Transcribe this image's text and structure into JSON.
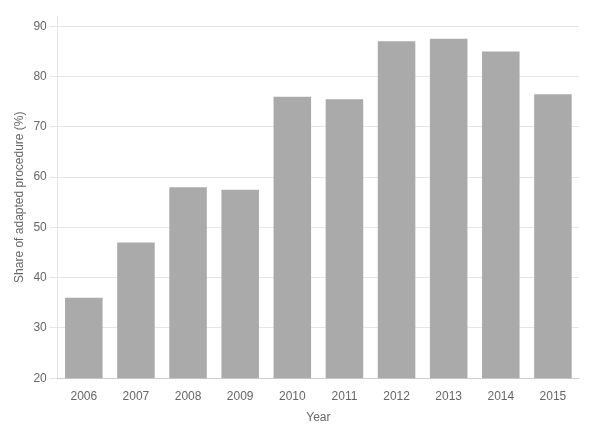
{
  "chart_data": {
    "type": "bar",
    "categories": [
      "2006",
      "2007",
      "2008",
      "2009",
      "2010",
      "2011",
      "2012",
      "2013",
      "2014",
      "2015"
    ],
    "values": [
      36,
      47,
      58,
      57.5,
      76,
      75.5,
      87,
      87.5,
      85,
      76.5
    ],
    "color": "#aaaaaa",
    "xlabel": "Year",
    "ylabel": "Share of adapted procedure (%)",
    "ylim": [
      20,
      92
    ],
    "yticks": [
      20,
      30,
      40,
      50,
      60,
      70,
      80,
      90
    ],
    "grid": true
  }
}
